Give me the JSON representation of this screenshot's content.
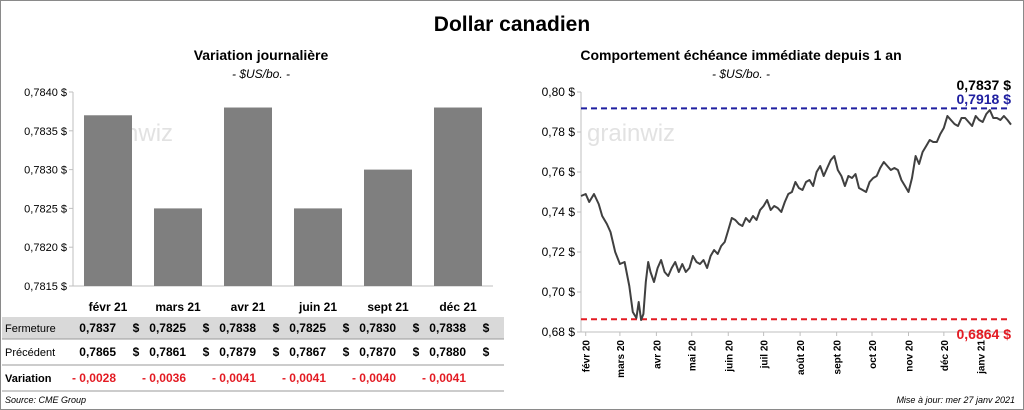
{
  "title": "Dollar canadien",
  "footer": {
    "source": "Source: CME Group",
    "updated": "Mise à jour: mer 27 janv 2021"
  },
  "watermark": "grainwiz",
  "colors": {
    "bar": "#7f7f7f",
    "line": "#404040",
    "high_line": "#1f1fa0",
    "low_line": "#e31b23",
    "negative": "#e31b23",
    "row_shade": "#d9d9d9"
  },
  "chart_data": [
    {
      "type": "bar",
      "title": "Variation  journalière",
      "subtitle": "- $US/bo. -",
      "categories": [
        "févr 21",
        "mars 21",
        "avr 21",
        "juin 21",
        "sept 21",
        "déc 21"
      ],
      "values": [
        0.7837,
        0.7825,
        0.7838,
        0.7825,
        0.783,
        0.7838
      ],
      "ylim": [
        0.7815,
        0.784
      ],
      "yticks": [
        0.7815,
        0.782,
        0.7825,
        0.783,
        0.7835,
        0.784
      ],
      "ytick_labels": [
        "0,7815 $",
        "0,7820 $",
        "0,7825 $",
        "0,7830 $",
        "0,7835 $",
        "0,7840 $"
      ],
      "grid": false,
      "table": {
        "rows": [
          {
            "label": "Fermeture",
            "values": [
              "0,7837",
              "0,7825",
              "0,7838",
              "0,7825",
              "0,7830",
              "0,7838"
            ],
            "unit": "$",
            "shaded": true
          },
          {
            "label": "Précédent",
            "values": [
              "0,7865",
              "0,7861",
              "0,7879",
              "0,7867",
              "0,7870",
              "0,7880"
            ],
            "unit": "$",
            "shaded": false
          },
          {
            "label": "Variation",
            "values": [
              "- 0,0028",
              "- 0,0036",
              "- 0,0041",
              "- 0,0041",
              "- 0,0040",
              "- 0,0041"
            ],
            "unit": "",
            "shaded": false
          }
        ]
      }
    },
    {
      "type": "line",
      "title": "Comportement échéance immédiate depuis 1 an",
      "subtitle": "- $US/bo. -",
      "ylim": [
        0.68,
        0.8
      ],
      "yticks": [
        0.68,
        0.7,
        0.72,
        0.74,
        0.76,
        0.78,
        0.8
      ],
      "ytick_labels": [
        "0,68 $",
        "0,70 $",
        "0,72 $",
        "0,74 $",
        "0,76 $",
        "0,78 $",
        "0,80 $"
      ],
      "xlim": [
        "2020-01-28",
        "2021-01-27"
      ],
      "xticks": [
        "2020-02-01",
        "2020-03-01",
        "2020-04-01",
        "2020-05-01",
        "2020-06-01",
        "2020-07-01",
        "2020-08-01",
        "2020-09-01",
        "2020-10-01",
        "2020-11-01",
        "2020-12-01",
        "2021-01-01"
      ],
      "xtick_labels": [
        "févr 20",
        "mars 20",
        "avr 20",
        "mai 20",
        "juin 20",
        "juil 20",
        "août 20",
        "sept 20",
        "oct 20",
        "nov 20",
        "déc 20",
        "janv 21"
      ],
      "grid": false,
      "last_value": 0.7837,
      "last_label": "0,7837 $",
      "high": {
        "value": 0.7918,
        "label": "0,7918 $"
      },
      "low": {
        "value": 0.6864,
        "label": "0,6864 $"
      },
      "series": [
        {
          "x": [
            "2020-01-28",
            "2020-02-01",
            "2020-02-04",
            "2020-02-08",
            "2020-02-12",
            "2020-02-15",
            "2020-02-19",
            "2020-02-22",
            "2020-02-26",
            "2020-03-01",
            "2020-03-05",
            "2020-03-09",
            "2020-03-12",
            "2020-03-15",
            "2020-03-17",
            "2020-03-19",
            "2020-03-21",
            "2020-03-23",
            "2020-03-25",
            "2020-03-27",
            "2020-03-30",
            "2020-04-02",
            "2020-04-05",
            "2020-04-08",
            "2020-04-11",
            "2020-04-14",
            "2020-04-17",
            "2020-04-20",
            "2020-04-23",
            "2020-04-26",
            "2020-04-29",
            "2020-05-02",
            "2020-05-05",
            "2020-05-08",
            "2020-05-11",
            "2020-05-14",
            "2020-05-17",
            "2020-05-20",
            "2020-05-23",
            "2020-05-26",
            "2020-05-29",
            "2020-06-01",
            "2020-06-04",
            "2020-06-07",
            "2020-06-10",
            "2020-06-13",
            "2020-06-16",
            "2020-06-19",
            "2020-06-22",
            "2020-06-25",
            "2020-06-28",
            "2020-07-01",
            "2020-07-04",
            "2020-07-07",
            "2020-07-10",
            "2020-07-13",
            "2020-07-16",
            "2020-07-19",
            "2020-07-22",
            "2020-07-25",
            "2020-07-28",
            "2020-07-31",
            "2020-08-03",
            "2020-08-06",
            "2020-08-09",
            "2020-08-12",
            "2020-08-15",
            "2020-08-18",
            "2020-08-21",
            "2020-08-24",
            "2020-08-27",
            "2020-08-30",
            "2020-09-02",
            "2020-09-05",
            "2020-09-08",
            "2020-09-11",
            "2020-09-14",
            "2020-09-17",
            "2020-09-20",
            "2020-09-23",
            "2020-09-26",
            "2020-09-29",
            "2020-10-02",
            "2020-10-05",
            "2020-10-08",
            "2020-10-11",
            "2020-10-14",
            "2020-10-17",
            "2020-10-20",
            "2020-10-23",
            "2020-10-26",
            "2020-10-29",
            "2020-11-01",
            "2020-11-04",
            "2020-11-07",
            "2020-11-10",
            "2020-11-13",
            "2020-11-16",
            "2020-11-19",
            "2020-11-22",
            "2020-11-25",
            "2020-11-28",
            "2020-12-01",
            "2020-12-04",
            "2020-12-07",
            "2020-12-10",
            "2020-12-13",
            "2020-12-16",
            "2020-12-19",
            "2020-12-22",
            "2020-12-25",
            "2020-12-28",
            "2020-12-31",
            "2021-01-03",
            "2021-01-06",
            "2021-01-09",
            "2021-01-12",
            "2021-01-15",
            "2021-01-18",
            "2021-01-21",
            "2021-01-24",
            "2021-01-27"
          ],
          "y": [
            0.748,
            0.749,
            0.745,
            0.749,
            0.744,
            0.738,
            0.734,
            0.73,
            0.72,
            0.714,
            0.715,
            0.703,
            0.69,
            0.687,
            0.695,
            0.686,
            0.689,
            0.705,
            0.715,
            0.71,
            0.705,
            0.712,
            0.716,
            0.71,
            0.708,
            0.712,
            0.715,
            0.71,
            0.714,
            0.71,
            0.712,
            0.718,
            0.715,
            0.714,
            0.716,
            0.712,
            0.718,
            0.721,
            0.719,
            0.723,
            0.725,
            0.731,
            0.737,
            0.736,
            0.734,
            0.733,
            0.737,
            0.735,
            0.738,
            0.736,
            0.741,
            0.743,
            0.746,
            0.741,
            0.743,
            0.742,
            0.74,
            0.745,
            0.749,
            0.75,
            0.755,
            0.752,
            0.751,
            0.755,
            0.756,
            0.753,
            0.76,
            0.763,
            0.758,
            0.762,
            0.766,
            0.768,
            0.761,
            0.758,
            0.753,
            0.758,
            0.757,
            0.759,
            0.752,
            0.751,
            0.75,
            0.755,
            0.757,
            0.758,
            0.762,
            0.765,
            0.763,
            0.761,
            0.762,
            0.761,
            0.756,
            0.753,
            0.75,
            0.757,
            0.768,
            0.764,
            0.77,
            0.773,
            0.776,
            0.775,
            0.775,
            0.779,
            0.782,
            0.788,
            0.786,
            0.784,
            0.783,
            0.787,
            0.787,
            0.785,
            0.783,
            0.788,
            0.786,
            0.785,
            0.789,
            0.791,
            0.787,
            0.787,
            0.786,
            0.788,
            0.786,
            0.7837
          ]
        }
      ]
    }
  ]
}
